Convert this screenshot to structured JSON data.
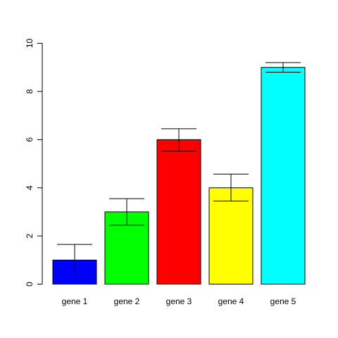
{
  "chart_data": {
    "type": "bar",
    "categories": [
      "gene 1",
      "gene 2",
      "gene 3",
      "gene 4",
      "gene 5"
    ],
    "values": [
      1,
      3,
      6,
      4,
      9
    ],
    "error_upper": [
      1.65,
      3.55,
      6.45,
      4.57,
      9.2
    ],
    "error_lower": [
      0.35,
      2.45,
      5.52,
      3.45,
      8.8
    ],
    "colors": [
      "#0000ff",
      "#00ff00",
      "#ff0000",
      "#ffff00",
      "#00ffff"
    ],
    "ylim": [
      0,
      10
    ],
    "yticks": [
      0,
      2,
      4,
      6,
      8,
      10
    ],
    "title": "",
    "xlabel": "",
    "ylabel": "",
    "grid": false,
    "legend": "none"
  }
}
